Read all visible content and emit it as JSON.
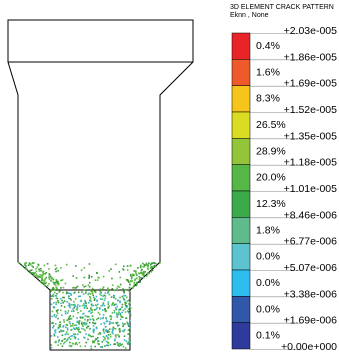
{
  "legend": {
    "title": "3D ELEMENT CRACK PATTERN",
    "subtitle": "Eknn , None",
    "levels": [
      "+2.03e-005",
      "+1.86e-005",
      "+1.69e-005",
      "+1.52e-005",
      "+1.35e-005",
      "+1.18e-005",
      "+1.01e-005",
      "+8.46e-006",
      "+6.77e-006",
      "+5.07e-006",
      "+3.38e-006",
      "+1.69e-006",
      "+0.00e+000"
    ],
    "bands": [
      {
        "percent": "0.4%",
        "color": "#e82428"
      },
      {
        "percent": "1.6%",
        "color": "#ee5a2a"
      },
      {
        "percent": "8.3%",
        "color": "#f6c51c"
      },
      {
        "percent": "26.5%",
        "color": "#d9dc22"
      },
      {
        "percent": "28.9%",
        "color": "#93c43a"
      },
      {
        "percent": "20.0%",
        "color": "#55b746"
      },
      {
        "percent": "12.3%",
        "color": "#3caa4a"
      },
      {
        "percent": "1.8%",
        "color": "#5fba8c"
      },
      {
        "percent": "0.0%",
        "color": "#5cc3cf"
      },
      {
        "percent": "0.0%",
        "color": "#2ebdef"
      },
      {
        "percent": "0.0%",
        "color": "#3057a8"
      },
      {
        "percent": "0.1%",
        "color": "#2f3b9c"
      }
    ]
  }
}
